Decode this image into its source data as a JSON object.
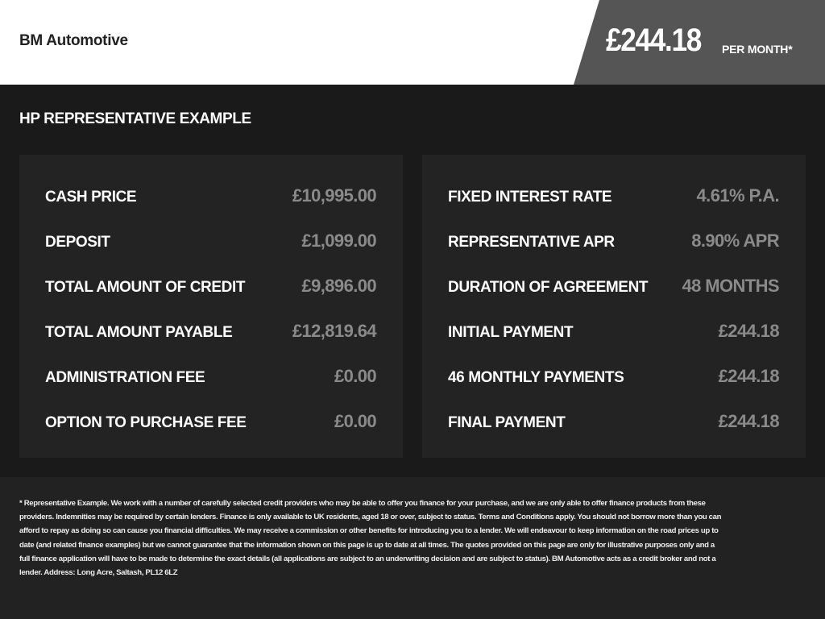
{
  "header": {
    "brand": "BM Automotive",
    "price": "£244.18",
    "per_month": "PER MONTH*"
  },
  "section_title": "HP REPRESENTATIVE EXAMPLE",
  "left_rows": [
    {
      "label": "CASH PRICE",
      "value": "£10,995.00"
    },
    {
      "label": "DEPOSIT",
      "value": "£1,099.00"
    },
    {
      "label": "TOTAL AMOUNT OF CREDIT",
      "value": "£9,896.00"
    },
    {
      "label": "TOTAL AMOUNT PAYABLE",
      "value": "£12,819.64"
    },
    {
      "label": "ADMINISTRATION FEE",
      "value": "£0.00"
    },
    {
      "label": "OPTION TO PURCHASE FEE",
      "value": "£0.00"
    }
  ],
  "right_rows": [
    {
      "label": "FIXED INTEREST RATE",
      "value": "4.61% P.A."
    },
    {
      "label": "REPRESENTATIVE APR",
      "value": "8.90% APR"
    },
    {
      "label": "DURATION OF AGREEMENT",
      "value": "48 MONTHS"
    },
    {
      "label": "INITIAL PAYMENT",
      "value": "£244.18"
    },
    {
      "label": "46 MONTHLY PAYMENTS",
      "value": "£244.18"
    },
    {
      "label": "FINAL PAYMENT",
      "value": "£244.18"
    }
  ],
  "disclaimer_lines": [
    "* Representative Example. We work with a number of carefully selected credit providers who may be able to offer you finance for your purchase, and we are only able to offer finance products from these",
    "providers. Indemnities may be required by certain lenders. Finance is only available to UK residents, aged 18 or over, subject to status. Terms and Conditions apply. You should not borrow more than you can",
    "afford to repay as doing so can cause you financial difficulties. We may receive a commission or other benefits for introducing you to a lender. We will endeavour to keep information on the road prices up to",
    "date (and related finance examples) but we cannot guarantee that the information shown on this page is up to date at all times. The quotes provided on this page are only for illustrative purposes only and a",
    "full finance application will have to be made to determine the exact details (all applications are subject to an underwriting decision and are subject to status). BM Automotive acts as a credit broker and not a",
    "lender. Address: Long Acre, Saltash, PL12 6LZ"
  ],
  "colors": {
    "header_bg": "#ffffff",
    "price_bg": "#555555",
    "page_bg": "#1a1a1a",
    "panel_bg": "#232323",
    "value_text": "#8a8a8a"
  }
}
